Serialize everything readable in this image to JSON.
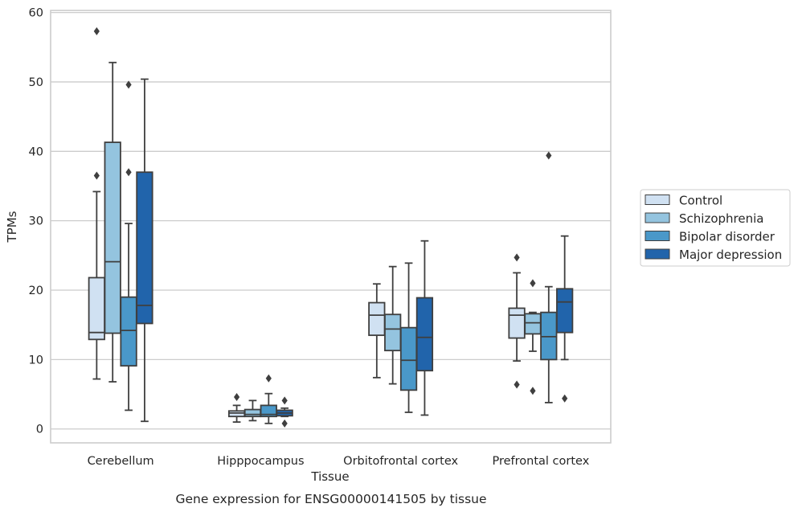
{
  "chart_data": {
    "type": "box",
    "xlabel": "Tissue",
    "ylabel": "TPMs",
    "caption": "Gene expression for ENSG00000141505 by tissue",
    "ylim": [
      -2,
      60.3
    ],
    "yticks": [
      0,
      10,
      20,
      30,
      40,
      50,
      60
    ],
    "grid": "horizontal",
    "legend_position": "right",
    "categories": [
      "Cerebellum",
      "Hipppocampus",
      "Orbitofrontal cortex",
      "Prefrontal cortex"
    ],
    "series": [
      {
        "name": "Control",
        "color": "#d0e1f2",
        "boxes": [
          {
            "whislo": 7.2,
            "q1": 12.9,
            "med": 13.9,
            "q3": 21.8,
            "whishi": 34.2,
            "fliers": [
              36.5,
              57.3
            ]
          },
          {
            "whislo": 1.0,
            "q1": 1.8,
            "med": 2.3,
            "q3": 2.6,
            "whishi": 3.4,
            "fliers": [
              4.6
            ]
          },
          {
            "whislo": 7.4,
            "q1": 13.5,
            "med": 16.4,
            "q3": 18.2,
            "whishi": 20.9,
            "fliers": []
          },
          {
            "whislo": 9.8,
            "q1": 13.1,
            "med": 16.4,
            "q3": 17.4,
            "whishi": 22.5,
            "fliers": [
              6.4,
              24.7
            ]
          }
        ]
      },
      {
        "name": "Schizophrenia",
        "color": "#94c4df",
        "boxes": [
          {
            "whislo": 6.8,
            "q1": 13.8,
            "med": 24.1,
            "q3": 41.3,
            "whishi": 52.8,
            "fliers": []
          },
          {
            "whislo": 1.2,
            "q1": 1.8,
            "med": 2.1,
            "q3": 2.8,
            "whishi": 4.1,
            "fliers": []
          },
          {
            "whislo": 6.5,
            "q1": 11.3,
            "med": 14.4,
            "q3": 16.5,
            "whishi": 23.4,
            "fliers": []
          },
          {
            "whislo": 11.2,
            "q1": 13.7,
            "med": 15.3,
            "q3": 16.6,
            "whishi": 16.8,
            "fliers": [
              5.5,
              21.0
            ]
          }
        ]
      },
      {
        "name": "Bipolar disorder",
        "color": "#4a98c9",
        "boxes": [
          {
            "whislo": 2.7,
            "q1": 9.1,
            "med": 14.2,
            "q3": 19.0,
            "whishi": 29.6,
            "fliers": [
              37.0,
              49.6
            ]
          },
          {
            "whislo": 0.8,
            "q1": 1.8,
            "med": 2.1,
            "q3": 3.4,
            "whishi": 5.1,
            "fliers": [
              7.3
            ]
          },
          {
            "whislo": 2.4,
            "q1": 5.6,
            "med": 9.9,
            "q3": 14.6,
            "whishi": 23.9,
            "fliers": []
          },
          {
            "whislo": 3.8,
            "q1": 10.0,
            "med": 13.3,
            "q3": 16.8,
            "whishi": 20.5,
            "fliers": [
              39.4
            ]
          }
        ]
      },
      {
        "name": "Major depression",
        "color": "#2164ab",
        "boxes": [
          {
            "whislo": 1.1,
            "q1": 15.2,
            "med": 17.8,
            "q3": 37.0,
            "whishi": 50.4,
            "fliers": []
          },
          {
            "whislo": 1.8,
            "q1": 1.9,
            "med": 2.3,
            "q3": 2.7,
            "whishi": 3.0,
            "fliers": [
              0.8,
              4.1
            ]
          },
          {
            "whislo": 2.0,
            "q1": 8.4,
            "med": 13.2,
            "q3": 18.9,
            "whishi": 27.1,
            "fliers": []
          },
          {
            "whislo": 10.0,
            "q1": 13.9,
            "med": 18.3,
            "q3": 20.2,
            "whishi": 27.8,
            "fliers": [
              4.4
            ]
          }
        ]
      }
    ]
  }
}
